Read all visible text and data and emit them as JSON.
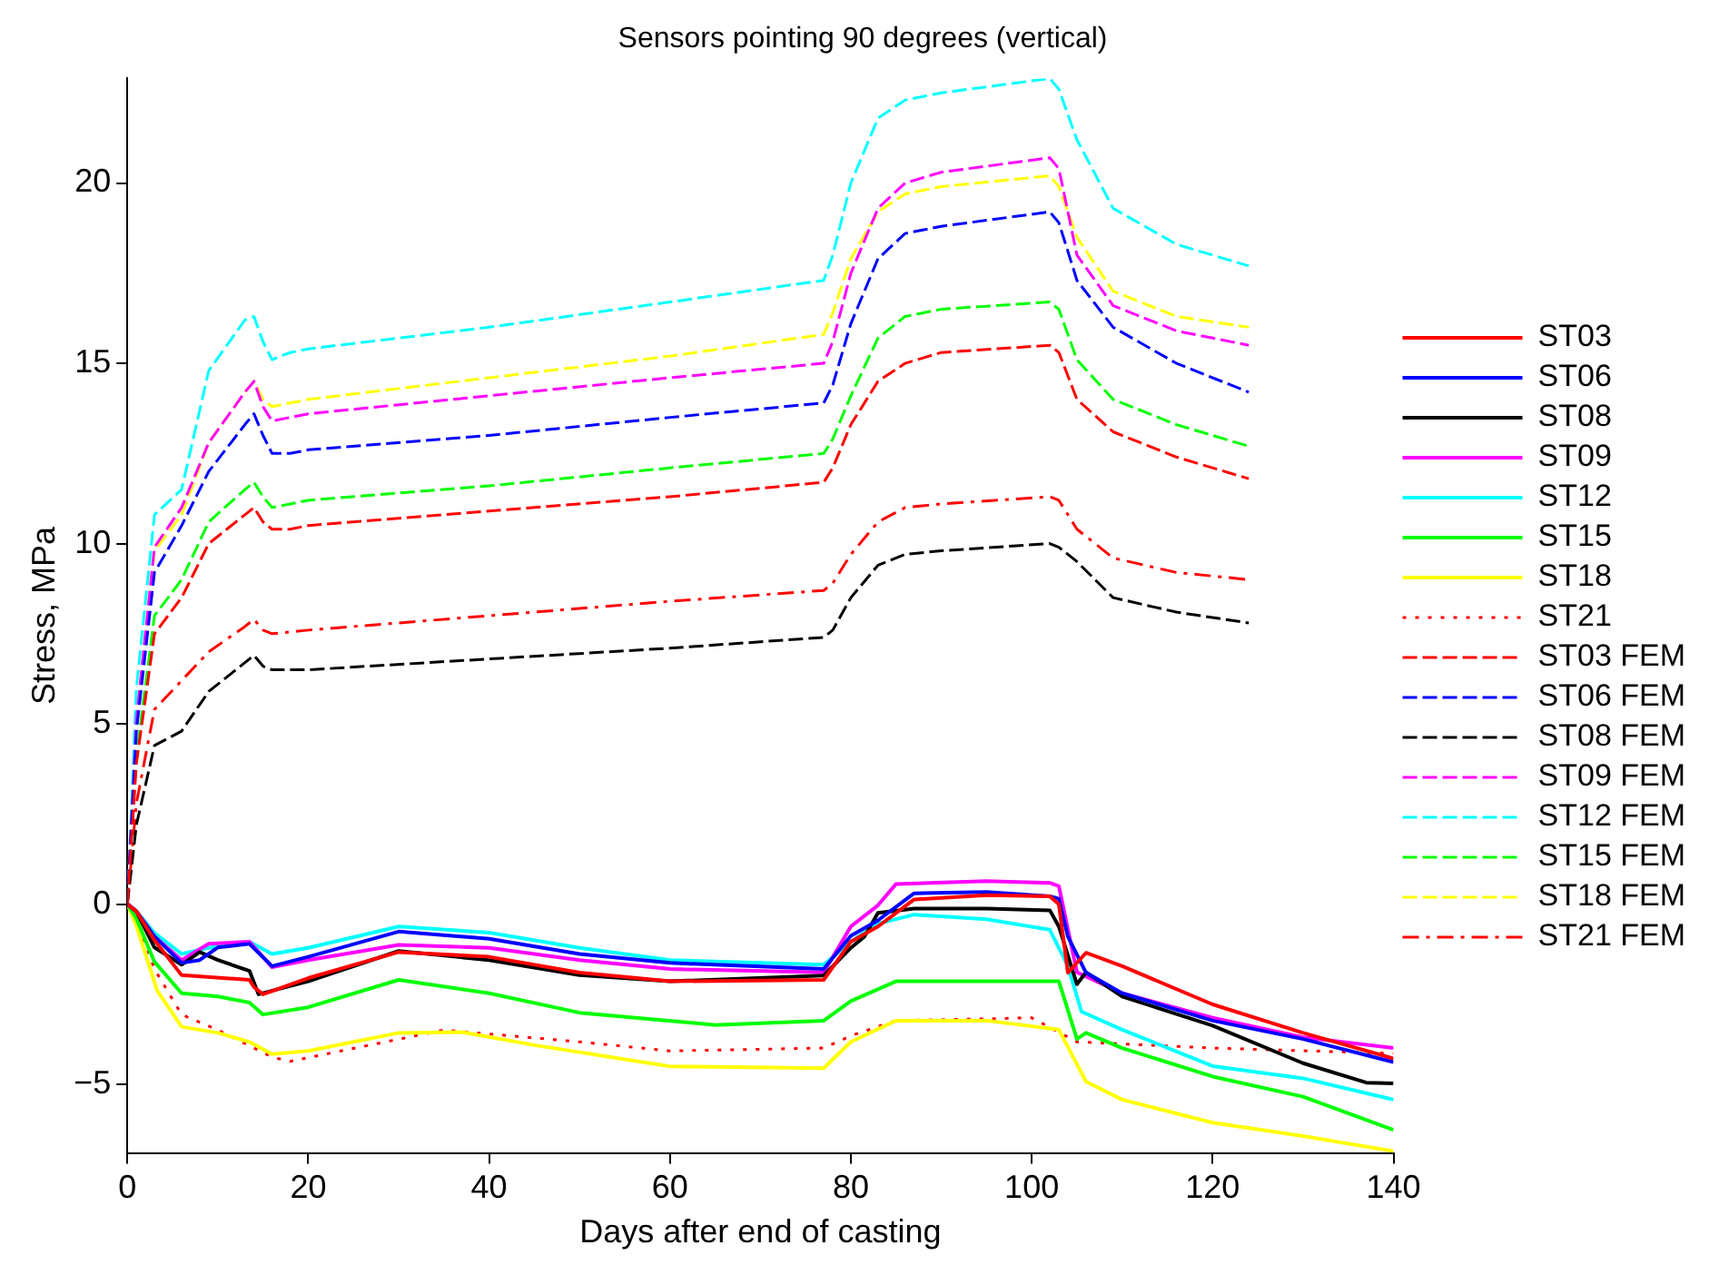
{
  "chart_data": {
    "type": "line",
    "title": "Sensors pointing 90 degrees (vertical)",
    "xlabel": "Days after end of casting",
    "ylabel": "Stress, MPa",
    "xlim": [
      0,
      140
    ],
    "xticks": [
      0,
      20,
      40,
      60,
      80,
      100,
      120,
      140
    ],
    "ylim": [
      -6.9,
      22.9
    ],
    "yticks": [
      -5,
      0,
      5,
      10,
      15,
      20
    ],
    "grid": false,
    "legend": "right",
    "marker": "none",
    "series": [
      {
        "name": "ST03",
        "color": "#ff0000",
        "line_style": "solid",
        "x": [
          0,
          1,
          3,
          6,
          13.5,
          14,
          15,
          20,
          30,
          40,
          50,
          60,
          77,
          80,
          83,
          87,
          95,
          102,
          103,
          104,
          106,
          110,
          120,
          130,
          140
        ],
        "values": [
          0,
          -0.2,
          -1.0,
          -1.97,
          -2.1,
          -2.3,
          -2.5,
          -2.05,
          -1.33,
          -1.46,
          -1.9,
          -2.14,
          -2.1,
          -1.04,
          -0.62,
          0.13,
          0.25,
          0.22,
          0.0,
          -1.9,
          -1.35,
          -1.72,
          -2.78,
          -3.57,
          -4.28
        ]
      },
      {
        "name": "ST06",
        "color": "#0000ff",
        "line_style": "solid",
        "x": [
          0,
          1,
          3,
          6,
          8,
          10,
          13.5,
          16,
          20,
          30,
          40,
          50,
          60,
          77,
          80,
          83,
          87,
          95,
          102,
          103,
          104,
          106,
          110,
          120,
          130,
          140
        ],
        "values": [
          0,
          -0.2,
          -0.9,
          -1.63,
          -1.55,
          -1.2,
          -1.1,
          -1.72,
          -1.46,
          -0.76,
          -0.96,
          -1.38,
          -1.63,
          -1.8,
          -0.88,
          -0.45,
          0.3,
          0.34,
          0.22,
          0.15,
          -0.9,
          -1.9,
          -2.47,
          -3.23,
          -3.74,
          -4.38
        ]
      },
      {
        "name": "ST08",
        "color": "#000000",
        "line_style": "solid",
        "x": [
          0,
          1,
          3,
          6,
          8,
          10,
          13.5,
          14.5,
          20,
          30,
          40,
          50,
          60,
          77,
          80,
          81.5,
          83,
          87,
          95,
          102,
          103,
          105,
          106,
          110,
          120,
          130,
          137,
          140
        ],
        "values": [
          0,
          -0.2,
          -1.2,
          -1.68,
          -1.33,
          -1.55,
          -1.85,
          -2.5,
          -2.14,
          -1.3,
          -1.55,
          -1.97,
          -2.14,
          -1.98,
          -1.21,
          -0.9,
          -0.24,
          -0.12,
          -0.12,
          -0.17,
          -0.62,
          -2.22,
          -1.89,
          -2.56,
          -3.37,
          -4.41,
          -4.95,
          -4.97
        ]
      },
      {
        "name": "ST09",
        "color": "#ff00ff",
        "line_style": "solid",
        "x": [
          0,
          1,
          3,
          6,
          9,
          13.5,
          16,
          20,
          30,
          40,
          50,
          60,
          77,
          80,
          83,
          85,
          95,
          102,
          103,
          105,
          110,
          120,
          130,
          140
        ],
        "values": [
          0,
          -0.2,
          -0.9,
          -1.55,
          -1.1,
          -1.04,
          -1.75,
          -1.55,
          -1.13,
          -1.21,
          -1.55,
          -1.8,
          -1.89,
          -0.62,
          -0.03,
          0.56,
          0.64,
          0.59,
          0.5,
          -1.89,
          -2.47,
          -3.15,
          -3.69,
          -3.99
        ]
      },
      {
        "name": "ST12",
        "color": "#00ffff",
        "line_style": "solid",
        "x": [
          0,
          1,
          3,
          6,
          9,
          13.5,
          16,
          20,
          30,
          40,
          50,
          60,
          77,
          80,
          83,
          87,
          95,
          102,
          104,
          105.5,
          110,
          120,
          130,
          140
        ],
        "values": [
          0,
          -0.2,
          -0.8,
          -1.38,
          -1.21,
          -1.04,
          -1.38,
          -1.21,
          -0.62,
          -0.79,
          -1.21,
          -1.55,
          -1.68,
          -1.04,
          -0.54,
          -0.29,
          -0.42,
          -0.71,
          -1.72,
          -2.98,
          -3.48,
          -4.49,
          -4.83,
          -5.42
        ]
      },
      {
        "name": "ST15",
        "color": "#00ff00",
        "line_style": "solid",
        "x": [
          0,
          1,
          3,
          6,
          10,
          13.5,
          15,
          20,
          30,
          40,
          50,
          65,
          77,
          80,
          85,
          95,
          103,
          105,
          106,
          110,
          120,
          130,
          140
        ],
        "values": [
          0,
          -0.4,
          -1.6,
          -2.47,
          -2.56,
          -2.73,
          -3.06,
          -2.86,
          -2.1,
          -2.47,
          -3.01,
          -3.35,
          -3.23,
          -2.69,
          -2.14,
          -2.14,
          -2.14,
          -3.74,
          -3.57,
          -3.99,
          -4.78,
          -5.34,
          -6.26
        ]
      },
      {
        "name": "ST18",
        "color": "#ffff00",
        "line_style": "solid",
        "x": [
          0,
          1,
          3.3,
          6,
          10,
          13.5,
          16,
          20,
          30,
          37,
          45,
          60,
          77,
          80,
          85,
          95,
          103,
          106,
          110,
          120,
          130,
          140
        ],
        "values": [
          0,
          -0.6,
          -2.4,
          -3.4,
          -3.57,
          -3.82,
          -4.16,
          -4.07,
          -3.57,
          -3.55,
          -3.91,
          -4.5,
          -4.55,
          -3.82,
          -3.23,
          -3.23,
          -3.48,
          -4.92,
          -5.42,
          -6.06,
          -6.43,
          -6.85
        ]
      },
      {
        "name": "ST21",
        "color": "#ff0000",
        "line_style": "dotted",
        "x": [
          0,
          1,
          3,
          6,
          10,
          16,
          18,
          25,
          35,
          50,
          60,
          77,
          80,
          85,
          95,
          100,
          105,
          120,
          140
        ],
        "values": [
          0,
          -0.4,
          -1.8,
          -3.06,
          -3.49,
          -4.24,
          -4.36,
          -4.0,
          -3.49,
          -3.82,
          -4.07,
          -3.99,
          -3.65,
          -3.23,
          -3.18,
          -3.15,
          -3.82,
          -3.99,
          -4.14
        ]
      },
      {
        "name": "ST03 FEM",
        "color": "#ff0000",
        "line_style": "dashed",
        "x": [
          0,
          1,
          3,
          6,
          9,
          13,
          14,
          15,
          16,
          18,
          20,
          40,
          60,
          77,
          78,
          80,
          83,
          86,
          90,
          102,
          103,
          105,
          109,
          116,
          124
        ],
        "values": [
          0,
          3.9,
          7.5,
          8.5,
          10.0,
          10.8,
          11.0,
          10.6,
          10.4,
          10.4,
          10.5,
          10.9,
          11.3,
          11.7,
          12.1,
          13.3,
          14.5,
          15.0,
          15.3,
          15.5,
          15.3,
          14.0,
          13.1,
          12.4,
          11.8
        ]
      },
      {
        "name": "ST06 FEM",
        "color": "#0000ff",
        "line_style": "dashed",
        "x": [
          0,
          1,
          3,
          6,
          9,
          13,
          14,
          15,
          16,
          18,
          20,
          40,
          60,
          77,
          78,
          80,
          83,
          86,
          90,
          102,
          103,
          105,
          109,
          116,
          124
        ],
        "values": [
          0,
          4.8,
          9.2,
          10.5,
          12.0,
          13.3,
          13.6,
          13.0,
          12.5,
          12.5,
          12.6,
          13.0,
          13.5,
          13.9,
          14.4,
          16.1,
          17.9,
          18.6,
          18.8,
          19.2,
          18.9,
          17.3,
          16.0,
          15.0,
          14.2
        ]
      },
      {
        "name": "ST08 FEM",
        "color": "#000000",
        "line_style": "dashed",
        "x": [
          0,
          1,
          3,
          6,
          9,
          13,
          14,
          15,
          16,
          18,
          20,
          40,
          60,
          77,
          78,
          80,
          83,
          86,
          90,
          102,
          103,
          105,
          109,
          116,
          124
        ],
        "values": [
          0,
          2.2,
          4.4,
          4.8,
          5.9,
          6.7,
          6.9,
          6.6,
          6.5,
          6.5,
          6.5,
          6.8,
          7.1,
          7.4,
          7.6,
          8.5,
          9.4,
          9.7,
          9.8,
          10.0,
          9.9,
          9.5,
          8.5,
          8.1,
          7.8
        ]
      },
      {
        "name": "ST09 FEM",
        "color": "#ff00ff",
        "line_style": "dashed",
        "x": [
          0,
          1,
          3,
          6,
          9,
          13,
          14,
          15,
          16,
          18,
          20,
          40,
          60,
          77,
          78,
          80,
          83,
          86,
          90,
          102,
          103,
          105,
          109,
          116,
          124
        ],
        "values": [
          0,
          5.1,
          9.9,
          11.0,
          12.8,
          14.2,
          14.5,
          13.8,
          13.4,
          13.5,
          13.6,
          14.1,
          14.6,
          15.0,
          15.6,
          17.5,
          19.3,
          20.0,
          20.3,
          20.7,
          20.4,
          18.0,
          16.6,
          15.9,
          15.5
        ]
      },
      {
        "name": "ST12 FEM",
        "color": "#00ffff",
        "line_style": "dashed",
        "x": [
          0,
          1,
          3,
          6,
          9,
          13,
          14,
          15,
          16,
          18,
          20,
          40,
          60,
          77,
          78,
          80,
          83,
          86,
          90,
          102,
          103,
          105,
          109,
          116,
          124
        ],
        "values": [
          0,
          6.0,
          10.8,
          11.5,
          14.8,
          16.2,
          16.3,
          15.6,
          15.1,
          15.3,
          15.4,
          16.0,
          16.7,
          17.3,
          18.0,
          20.0,
          21.8,
          22.3,
          22.5,
          22.9,
          22.6,
          21.2,
          19.3,
          18.3,
          17.7
        ]
      },
      {
        "name": "ST15 FEM",
        "color": "#00ff00",
        "line_style": "dashed",
        "x": [
          0,
          1,
          3,
          6,
          9,
          13,
          14,
          15,
          16,
          18,
          20,
          40,
          60,
          77,
          78,
          80,
          83,
          86,
          90,
          102,
          103,
          105,
          109,
          116,
          124
        ],
        "values": [
          0,
          4.1,
          8.0,
          9.0,
          10.6,
          11.5,
          11.7,
          11.3,
          11.0,
          11.1,
          11.2,
          11.6,
          12.1,
          12.5,
          12.9,
          14.1,
          15.7,
          16.3,
          16.5,
          16.7,
          16.5,
          15.1,
          14.0,
          13.3,
          12.7
        ]
      },
      {
        "name": "ST18 FEM",
        "color": "#ffff00",
        "line_style": "dashed",
        "x": [
          0,
          1,
          3,
          6,
          9,
          13,
          14,
          15,
          16,
          18,
          20,
          40,
          60,
          77,
          78,
          80,
          83,
          86,
          90,
          102,
          103,
          105,
          109,
          116,
          124
        ],
        "values": [
          0,
          5.1,
          9.8,
          10.8,
          12.8,
          14.2,
          14.5,
          14.0,
          13.8,
          13.9,
          14.0,
          14.6,
          15.2,
          15.8,
          16.4,
          17.9,
          19.2,
          19.7,
          19.9,
          20.2,
          19.9,
          18.5,
          17.0,
          16.3,
          16.0
        ]
      },
      {
        "name": "ST21 FEM",
        "color": "#ff0000",
        "line_style": "dashdot",
        "x": [
          0,
          1,
          3,
          6,
          9,
          13,
          14,
          15,
          16,
          18,
          20,
          40,
          60,
          77,
          78,
          80,
          83,
          86,
          90,
          102,
          103,
          105,
          109,
          116,
          124
        ],
        "values": [
          0,
          2.8,
          5.4,
          6.2,
          7.0,
          7.7,
          7.9,
          7.6,
          7.5,
          7.55,
          7.6,
          8.0,
          8.4,
          8.7,
          8.9,
          9.7,
          10.6,
          11.0,
          11.1,
          11.3,
          11.2,
          10.4,
          9.6,
          9.2,
          9.0
        ]
      }
    ]
  }
}
